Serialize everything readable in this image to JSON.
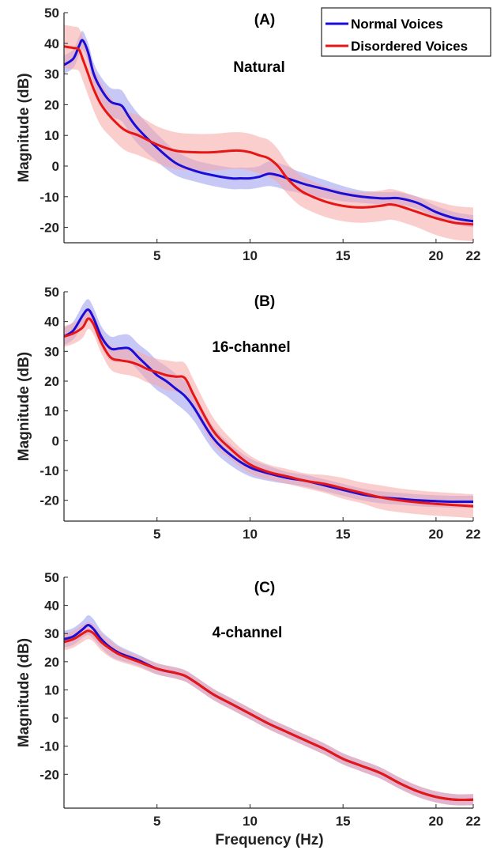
{
  "chart_data": {
    "type": "line",
    "shared": {
      "xlabel": "Frequency (Hz)",
      "ylabel": "Magnitude (dB)",
      "xlim": [
        0,
        22
      ],
      "xticks": [
        5,
        10,
        15,
        20,
        22
      ],
      "legend": {
        "placement": "top-right",
        "entries": [
          {
            "name": "Normal Voices",
            "color": "#1a0dd8"
          },
          {
            "name": "Disordered Voices",
            "color": "#e81515"
          }
        ]
      },
      "colors": {
        "normal_line": "#1a0dd8",
        "normal_band": "#9b9bf0",
        "disordered_line": "#e81515",
        "disordered_band": "#f7a6a6",
        "overlap_band": "#b49cd2"
      }
    },
    "panels": [
      {
        "label": "(A)",
        "subtitle": "Natural",
        "ylim": [
          -25,
          50
        ],
        "yticks": [
          -20,
          -10,
          0,
          10,
          20,
          30,
          40,
          50
        ],
        "x": [
          0,
          0.5,
          0.8,
          1.0,
          1.3,
          1.6,
          2,
          2.5,
          3,
          3.2,
          3.5,
          4,
          5,
          6,
          7,
          8,
          9,
          9.5,
          10,
          10.5,
          11,
          11.5,
          12,
          12.5,
          13,
          14,
          15,
          16,
          17,
          17.5,
          18,
          19,
          20,
          21,
          22
        ],
        "series": [
          {
            "name": "Normal Voices",
            "mean": [
              33,
              35,
              39,
              41,
              37,
              30,
              25,
              21,
              20,
              19,
              16,
              12,
              6,
              1,
              -1.5,
              -3,
              -4,
              -4,
              -4,
              -3.5,
              -2.5,
              -3,
              -4,
              -5,
              -6,
              -7.5,
              -9,
              -10,
              -10.5,
              -10.5,
              -10.5,
              -12,
              -15,
              -17,
              -18
            ],
            "spread": [
              3,
              3,
              3,
              3,
              3,
              3.5,
              4,
              4.5,
              5,
              5,
              5,
              5,
              4.5,
              4,
              3.5,
              3.5,
              3.5,
              3.5,
              3.5,
              3.5,
              4,
              4,
              4,
              3.5,
              3.5,
              3,
              2.5,
              2,
              2,
              2,
              2,
              2,
              2,
              2,
              2
            ]
          },
          {
            "name": "Disordered Voices",
            "mean": [
              39,
              38.5,
              38,
              35,
              30,
              25,
              20,
              16,
              13,
              12,
              11,
              10,
              7,
              5,
              4.5,
              4.5,
              5,
              5,
              4.5,
              3.5,
              2.5,
              0,
              -4,
              -7,
              -9,
              -11.5,
              -13,
              -13.5,
              -13,
              -12.5,
              -13,
              -15,
              -17,
              -18.5,
              -19
            ],
            "spread": [
              7,
              7,
              7,
              7,
              7,
              7,
              7,
              6.5,
              6.5,
              6.5,
              6.5,
              6.5,
              6,
              6,
              6,
              6,
              6,
              6,
              6,
              6,
              6,
              5.5,
              5,
              5,
              5,
              5,
              5,
              5,
              5,
              5,
              5,
              5,
              5.5,
              5.5,
              5.5
            ]
          }
        ]
      },
      {
        "label": "(B)",
        "subtitle": "16-channel",
        "ylim": [
          -27,
          50
        ],
        "yticks": [
          -20,
          -10,
          0,
          10,
          20,
          30,
          40,
          50
        ],
        "x": [
          0,
          0.5,
          1,
          1.3,
          1.6,
          2,
          2.5,
          3,
          3.5,
          4,
          4.5,
          5,
          5.5,
          6,
          6.5,
          7,
          8,
          9,
          10,
          11,
          12,
          13,
          14,
          15,
          16,
          17,
          18,
          19,
          20,
          21,
          22
        ],
        "series": [
          {
            "name": "Normal Voices",
            "mean": [
              35,
              37,
              42,
              44,
              41,
              35,
              31,
              31,
              31,
              28,
              25,
              22,
              20,
              17.5,
              15,
              11,
              1,
              -5,
              -9,
              -11,
              -12.5,
              -13.5,
              -15,
              -16.5,
              -18,
              -19,
              -19.5,
              -20,
              -20.3,
              -20.5,
              -20.5
            ],
            "spread": [
              3,
              3,
              3.5,
              3.5,
              3.5,
              3.5,
              4,
              4.5,
              4.5,
              4.5,
              5,
              5,
              5,
              5,
              5,
              4.5,
              4,
              3.5,
              3,
              2.5,
              2,
              2,
              2,
              2,
              2,
              2,
              2,
              2,
              2,
              2,
              2
            ]
          },
          {
            "name": "Disordered Voices",
            "mean": [
              35,
              36,
              38,
              41,
              39,
              33,
              28,
              27,
              26.5,
              25.5,
              24,
              23,
              22,
              21.5,
              21,
              15,
              3.5,
              -3,
              -8,
              -10.5,
              -12,
              -13.5,
              -14.5,
              -16,
              -17.5,
              -19,
              -20,
              -20.7,
              -21.2,
              -21.6,
              -22
            ],
            "spread": [
              3.5,
              3.5,
              3.5,
              3.5,
              3.5,
              3.5,
              4,
              4.5,
              4.5,
              4.5,
              4.5,
              4.5,
              5,
              5,
              5,
              5,
              4.5,
              3.5,
              3,
              2.5,
              2.5,
              2.5,
              3,
              3.5,
              3.5,
              4,
              4,
              4,
              4,
              4,
              4
            ]
          }
        ]
      },
      {
        "label": "(C)",
        "subtitle": "4-channel",
        "ylim": [
          -32,
          50
        ],
        "yticks": [
          -20,
          -10,
          0,
          10,
          20,
          30,
          40,
          50
        ],
        "x": [
          0,
          0.5,
          1,
          1.3,
          1.6,
          2,
          2.5,
          3,
          4,
          5,
          6,
          6.5,
          7,
          8,
          9,
          10,
          11,
          12,
          13,
          14,
          15,
          16,
          17,
          18,
          19,
          20,
          21,
          22
        ],
        "series": [
          {
            "name": "Normal Voices",
            "mean": [
              28,
              29,
              31.5,
              33,
              31.5,
              28,
              25,
              23,
              20.5,
              17.5,
              16,
              15,
              13,
              8.5,
              5,
              1.5,
              -2,
              -5,
              -8,
              -11,
              -14.5,
              -17,
              -19.5,
              -23,
              -26,
              -28,
              -29,
              -29
            ],
            "spread": [
              3,
              3,
              3,
              3.5,
              3.5,
              3,
              3,
              2.5,
              2,
              2,
              2,
              2,
              2,
              2,
              2,
              2,
              2,
              2,
              2,
              2,
              2,
              2,
              2,
              2,
              2,
              2,
              2,
              2
            ]
          },
          {
            "name": "Disordered Voices",
            "mean": [
              27,
              28,
              30,
              31,
              30,
              27,
              24.5,
              22.5,
              20,
              17.5,
              16,
              15,
              13,
              8.5,
              5,
              1.5,
              -2,
              -5,
              -8,
              -11,
              -14.5,
              -17,
              -19.5,
              -23,
              -26,
              -28,
              -29,
              -29
            ],
            "spread": [
              3,
              3,
              3,
              3,
              3,
              3,
              3,
              2.5,
              2,
              2,
              2,
              2,
              2,
              2,
              2,
              2,
              2,
              2,
              2,
              2,
              2,
              2,
              2,
              2,
              2,
              2,
              2,
              2
            ]
          }
        ]
      }
    ]
  }
}
